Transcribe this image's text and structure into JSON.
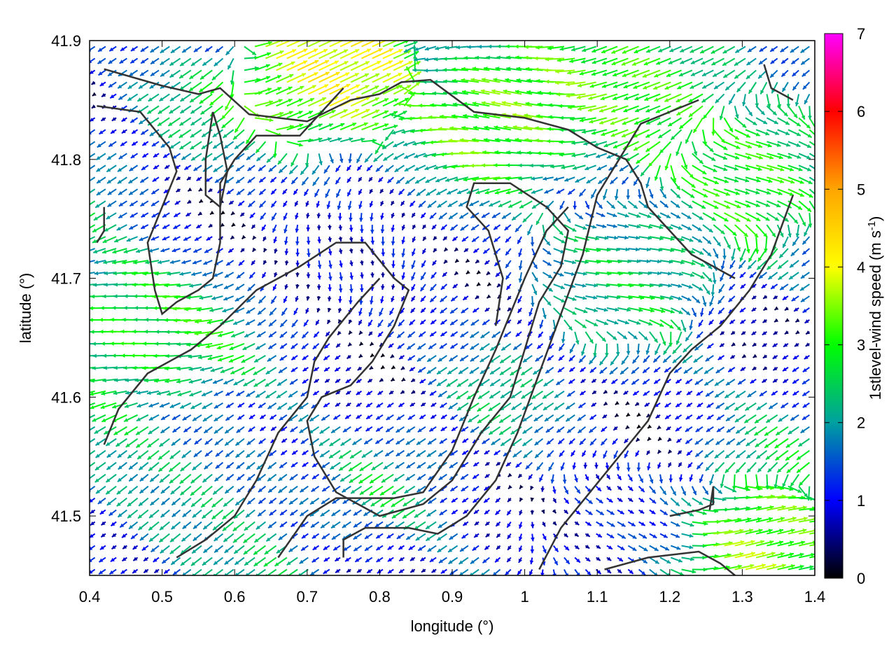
{
  "chart_data": {
    "type": "vector-field",
    "xlabel": "longitude (°)",
    "ylabel": "latitude (°)",
    "xlim": [
      0.4,
      1.4
    ],
    "ylim": [
      41.45,
      41.9
    ],
    "xticks": [
      "0.4",
      "0.5",
      "0.6",
      "0.7",
      "0.8",
      "0.9",
      "1",
      "1.1",
      "1.2",
      "1.3",
      "1.4"
    ],
    "yticks": [
      "41.5",
      "41.6",
      "41.7",
      "41.8",
      "41.9"
    ],
    "colorbar": {
      "label_main": "1stlevel-wind speed (m s",
      "label_sup": "-1",
      "label_close": ")",
      "range": [
        0,
        7
      ],
      "ticks": [
        "0",
        "1",
        "2",
        "3",
        "4",
        "5",
        "6",
        "7"
      ],
      "colors": [
        "#000000",
        "#0000ff",
        "#00a0a0",
        "#00ff00",
        "#ffff00",
        "#ffa500",
        "#ff0000",
        "#ff00ff"
      ]
    },
    "vector_grid": {
      "nx": 68,
      "ny": 45
    },
    "speed_regions": [
      {
        "lon": 0.99,
        "lat": 41.845,
        "speed": 3.7,
        "u": -1.0,
        "v": 0.3
      },
      {
        "lon": 1.18,
        "lat": 41.855,
        "speed": 3.4,
        "u": -0.9,
        "v": -0.3
      },
      {
        "lon": 1.3,
        "lat": 41.8,
        "speed": 3.2,
        "u": 1.0,
        "v": -0.15
      },
      {
        "lon": 0.73,
        "lat": 41.87,
        "speed": 4.6,
        "u": 1.0,
        "v": 0.5
      },
      {
        "lon": 0.47,
        "lat": 41.66,
        "speed": 3.2,
        "u": -1.0,
        "v": 0.1
      },
      {
        "lon": 1.32,
        "lat": 41.47,
        "speed": 4.0,
        "u": 1.0,
        "v": 0.3
      },
      {
        "lon": 1.13,
        "lat": 41.71,
        "speed": 2.5,
        "u": 1.0,
        "v": 0.0
      },
      {
        "lon": 0.55,
        "lat": 41.52,
        "speed": 2.3,
        "u": -0.7,
        "v": -0.6
      },
      {
        "lon": 0.75,
        "lat": 41.72,
        "speed": 0.6,
        "u": 0.2,
        "v": -0.3
      },
      {
        "lon": 1.12,
        "lat": 41.49,
        "speed": 0.9,
        "u": 0.6,
        "v": -0.2
      }
    ],
    "contours": [
      [
        [
          0.42,
          41.876
        ],
        [
          0.5,
          41.862
        ],
        [
          0.55,
          41.855
        ],
        [
          0.58,
          41.86
        ],
        [
          0.62,
          41.838
        ],
        [
          0.7,
          41.832
        ],
        [
          0.76,
          41.85
        ],
        [
          0.8,
          41.855
        ],
        [
          0.83,
          41.865
        ],
        [
          0.87,
          41.867
        ],
        [
          0.93,
          41.84
        ],
        [
          1.0,
          41.835
        ],
        [
          1.06,
          41.825
        ],
        [
          1.1,
          41.81
        ],
        [
          1.14,
          41.8
        ],
        [
          1.16,
          41.78
        ],
        [
          1.17,
          41.76
        ],
        [
          1.2,
          41.74
        ],
        [
          1.23,
          41.72
        ],
        [
          1.26,
          41.71
        ],
        [
          1.29,
          41.7
        ]
      ],
      [
        [
          0.41,
          41.845
        ],
        [
          0.47,
          41.84
        ],
        [
          0.51,
          41.81
        ],
        [
          0.52,
          41.79
        ],
        [
          0.5,
          41.76
        ],
        [
          0.48,
          41.73
        ],
        [
          0.49,
          41.69
        ],
        [
          0.5,
          41.67
        ],
        [
          0.52,
          41.68
        ],
        [
          0.55,
          41.69
        ],
        [
          0.57,
          41.7
        ],
        [
          0.58,
          41.73
        ],
        [
          0.58,
          41.76
        ],
        [
          0.58,
          41.78
        ],
        [
          0.6,
          41.8
        ],
        [
          0.63,
          41.82
        ],
        [
          0.66,
          41.82
        ],
        [
          0.69,
          41.82
        ],
        [
          0.72,
          41.84
        ],
        [
          0.75,
          41.86
        ]
      ],
      [
        [
          0.42,
          41.56
        ],
        [
          0.44,
          41.59
        ],
        [
          0.48,
          41.62
        ],
        [
          0.54,
          41.64
        ],
        [
          0.58,
          41.66
        ],
        [
          0.63,
          41.69
        ],
        [
          0.66,
          41.7
        ],
        [
          0.69,
          41.71
        ],
        [
          0.74,
          41.73
        ],
        [
          0.78,
          41.73
        ],
        [
          0.82,
          41.7
        ],
        [
          0.84,
          41.69
        ],
        [
          0.82,
          41.66
        ],
        [
          0.79,
          41.63
        ],
        [
          0.76,
          41.61
        ],
        [
          0.72,
          41.6
        ],
        [
          0.7,
          41.58
        ],
        [
          0.71,
          41.55
        ],
        [
          0.74,
          41.52
        ],
        [
          0.8,
          41.5
        ],
        [
          0.86,
          41.51
        ],
        [
          0.9,
          41.53
        ],
        [
          0.94,
          41.57
        ],
        [
          0.98,
          41.6
        ],
        [
          1.0,
          41.64
        ],
        [
          1.02,
          41.68
        ],
        [
          1.05,
          41.71
        ],
        [
          1.06,
          41.74
        ],
        [
          1.03,
          41.76
        ],
        [
          0.98,
          41.78
        ],
        [
          0.93,
          41.78
        ],
        [
          0.92,
          41.76
        ],
        [
          0.95,
          41.74
        ],
        [
          0.97,
          41.7
        ],
        [
          0.96,
          41.66
        ]
      ],
      [
        [
          0.52,
          41.465
        ],
        [
          0.56,
          41.48
        ],
        [
          0.6,
          41.5
        ],
        [
          0.63,
          41.53
        ],
        [
          0.66,
          41.57
        ],
        [
          0.7,
          41.6
        ],
        [
          0.71,
          41.63
        ],
        [
          0.73,
          41.65
        ],
        [
          0.77,
          41.68
        ],
        [
          0.8,
          41.7
        ]
      ],
      [
        [
          0.66,
          41.465
        ],
        [
          0.7,
          41.5
        ],
        [
          0.74,
          41.515
        ],
        [
          0.82,
          41.515
        ],
        [
          0.86,
          41.52
        ],
        [
          0.9,
          41.555
        ],
        [
          0.93,
          41.6
        ],
        [
          0.96,
          41.64
        ],
        [
          1.0,
          41.7
        ],
        [
          1.03,
          41.74
        ],
        [
          1.06,
          41.76
        ]
      ],
      [
        [
          0.75,
          41.465
        ],
        [
          0.75,
          41.48
        ],
        [
          0.78,
          41.49
        ],
        [
          0.84,
          41.49
        ],
        [
          0.88,
          41.485
        ],
        [
          0.92,
          41.5
        ],
        [
          0.96,
          41.53
        ],
        [
          0.99,
          41.57
        ],
        [
          1.02,
          41.62
        ],
        [
          1.05,
          41.67
        ],
        [
          1.08,
          41.72
        ],
        [
          1.1,
          41.77
        ],
        [
          1.13,
          41.8
        ],
        [
          1.16,
          41.83
        ],
        [
          1.2,
          41.84
        ],
        [
          1.24,
          41.85
        ]
      ],
      [
        [
          1.02,
          41.455
        ],
        [
          1.05,
          41.49
        ],
        [
          1.09,
          41.52
        ],
        [
          1.13,
          41.55
        ],
        [
          1.17,
          41.58
        ],
        [
          1.2,
          41.62
        ],
        [
          1.23,
          41.64
        ],
        [
          1.27,
          41.66
        ],
        [
          1.31,
          41.69
        ],
        [
          1.34,
          41.72
        ],
        [
          1.37,
          41.77
        ]
      ],
      [
        [
          1.11,
          41.455
        ],
        [
          1.17,
          41.465
        ],
        [
          1.24,
          41.47
        ],
        [
          1.27,
          41.46
        ],
        [
          1.29,
          41.45
        ]
      ],
      [
        [
          1.2,
          41.5
        ],
        [
          1.24,
          41.505
        ],
        [
          1.26,
          41.51
        ],
        [
          1.26,
          41.525
        ],
        [
          1.255,
          41.505
        ]
      ],
      [
        [
          1.33,
          41.88
        ],
        [
          1.34,
          41.86
        ],
        [
          1.37,
          41.85
        ]
      ],
      [
        [
          0.57,
          41.84
        ],
        [
          0.56,
          41.8
        ],
        [
          0.56,
          41.77
        ],
        [
          0.58,
          41.76
        ],
        [
          0.59,
          41.79
        ],
        [
          0.58,
          41.82
        ],
        [
          0.57,
          41.84
        ]
      ],
      [
        [
          0.42,
          41.76
        ],
        [
          0.42,
          41.74
        ],
        [
          0.41,
          41.73
        ]
      ]
    ]
  }
}
